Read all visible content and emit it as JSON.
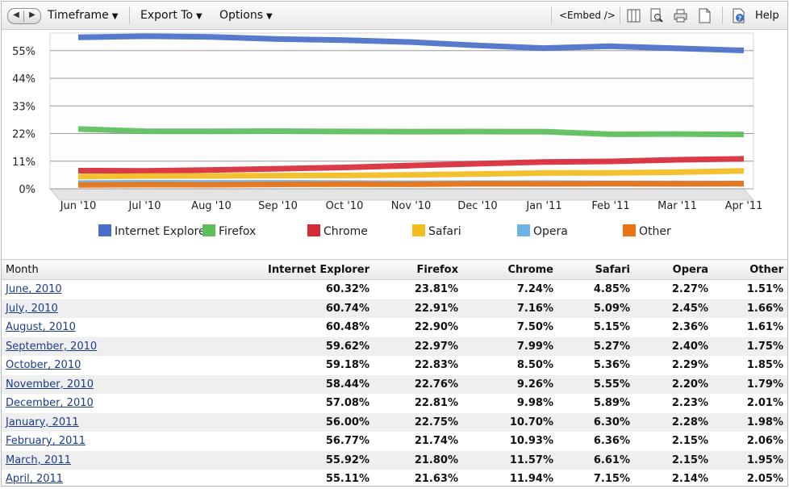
{
  "toolbar": {
    "timeframe_label": "Timeframe",
    "export_label": "Export To",
    "options_label": "Options",
    "embed_label": "<Embed />",
    "help_label": "Help"
  },
  "chart_data": {
    "type": "area",
    "categories": [
      "Jun '10",
      "Jul '10",
      "Aug '10",
      "Sep '10",
      "Oct '10",
      "Nov '10",
      "Dec '10",
      "Jan '11",
      "Feb '11",
      "Mar '11",
      "Apr '11"
    ],
    "y_ticks": [
      "0%",
      "11%",
      "22%",
      "33%",
      "44%",
      "55%"
    ],
    "y_tick_values": [
      0,
      11,
      22,
      33,
      44,
      55
    ],
    "ylim": [
      0,
      62
    ],
    "grid": true,
    "legend_position": "bottom",
    "series": [
      {
        "name": "Internet Explorer",
        "color": "#4a6fc9",
        "values": [
          60.32,
          60.74,
          60.48,
          59.62,
          59.18,
          58.44,
          57.08,
          56.0,
          56.77,
          55.92,
          55.11
        ]
      },
      {
        "name": "Firefox",
        "color": "#5cbf5c",
        "values": [
          23.81,
          22.91,
          22.9,
          22.97,
          22.83,
          22.76,
          22.81,
          22.75,
          21.74,
          21.8,
          21.63
        ]
      },
      {
        "name": "Chrome",
        "color": "#d82a36",
        "values": [
          7.24,
          7.16,
          7.5,
          7.99,
          8.5,
          9.26,
          9.98,
          10.7,
          10.93,
          11.57,
          11.94
        ]
      },
      {
        "name": "Safari",
        "color": "#f2bb1e",
        "values": [
          4.85,
          5.09,
          5.15,
          5.27,
          5.36,
          5.55,
          5.89,
          6.3,
          6.36,
          6.61,
          7.15
        ]
      },
      {
        "name": "Opera",
        "color": "#6cb4e6",
        "values": [
          2.27,
          2.45,
          2.36,
          2.4,
          2.29,
          2.2,
          2.23,
          2.28,
          2.15,
          2.15,
          2.14
        ]
      },
      {
        "name": "Other",
        "color": "#ea7316",
        "values": [
          1.51,
          1.66,
          1.61,
          1.75,
          1.85,
          1.79,
          2.01,
          1.98,
          2.06,
          1.95,
          2.05
        ]
      }
    ]
  },
  "table": {
    "headers": [
      "Month",
      "Internet Explorer",
      "Firefox",
      "Chrome",
      "Safari",
      "Opera",
      "Other"
    ],
    "rows": [
      [
        "June, 2010",
        "60.32%",
        "23.81%",
        "7.24%",
        "4.85%",
        "2.27%",
        "1.51%"
      ],
      [
        "July, 2010",
        "60.74%",
        "22.91%",
        "7.16%",
        "5.09%",
        "2.45%",
        "1.66%"
      ],
      [
        "August, 2010",
        "60.48%",
        "22.90%",
        "7.50%",
        "5.15%",
        "2.36%",
        "1.61%"
      ],
      [
        "September, 2010",
        "59.62%",
        "22.97%",
        "7.99%",
        "5.27%",
        "2.40%",
        "1.75%"
      ],
      [
        "October, 2010",
        "59.18%",
        "22.83%",
        "8.50%",
        "5.36%",
        "2.29%",
        "1.85%"
      ],
      [
        "November, 2010",
        "58.44%",
        "22.76%",
        "9.26%",
        "5.55%",
        "2.20%",
        "1.79%"
      ],
      [
        "December, 2010",
        "57.08%",
        "22.81%",
        "9.98%",
        "5.89%",
        "2.23%",
        "2.01%"
      ],
      [
        "January, 2011",
        "56.00%",
        "22.75%",
        "10.70%",
        "6.30%",
        "2.28%",
        "1.98%"
      ],
      [
        "February, 2011",
        "56.77%",
        "21.74%",
        "10.93%",
        "6.36%",
        "2.15%",
        "2.06%"
      ],
      [
        "March, 2011",
        "55.92%",
        "21.80%",
        "11.57%",
        "6.61%",
        "2.15%",
        "1.95%"
      ],
      [
        "April, 2011",
        "55.11%",
        "21.63%",
        "11.94%",
        "7.15%",
        "2.14%",
        "2.05%"
      ]
    ]
  }
}
